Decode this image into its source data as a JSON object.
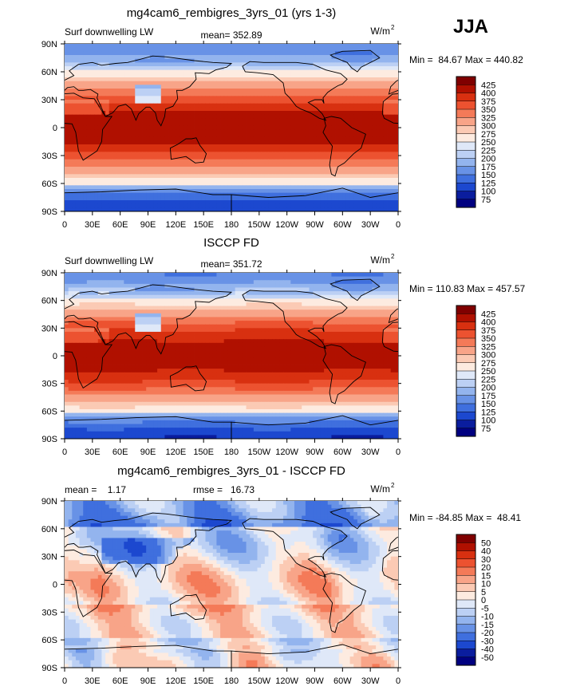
{
  "season_label": "JJA",
  "lon_ticks": [
    "0",
    "30E",
    "60E",
    "90E",
    "120E",
    "150E",
    "180",
    "150W",
    "120W",
    "90W",
    "60W",
    "30W",
    "0"
  ],
  "lat_ticks": [
    "90N",
    "60N",
    "30N",
    "0",
    "30S",
    "60S",
    "90S"
  ],
  "chart_data": [
    {
      "type": "heatmap",
      "title": "mg4cam6_rembigres_3yrs_01 (yrs 1-3)",
      "variable_label": "Surf downwelling LW",
      "stat_text": "mean= 352.89",
      "units_text": "W/m",
      "units_exp": "2",
      "minmax_text": "Min =  84.67 Max = 440.82",
      "colorbar_levels": [
        "425",
        "400",
        "375",
        "350",
        "325",
        "300",
        "275",
        "250",
        "225",
        "200",
        "175",
        "150",
        "125",
        "100",
        "75"
      ],
      "colorbar_colors": [
        "#800000",
        "#b01000",
        "#d83010",
        "#ec5230",
        "#f47a58",
        "#f8a488",
        "#fbcab4",
        "#fdebe0",
        "#dfe8f8",
        "#bcd0f4",
        "#93b4ee",
        "#6892e6",
        "#3f6fde",
        "#1c48cf",
        "#0a1d9e",
        "#000080"
      ],
      "field": "downwelling_lw_model",
      "xlim": [
        0,
        360
      ],
      "ylim": [
        -90,
        90
      ]
    },
    {
      "type": "heatmap",
      "title": "ISCCP FD",
      "variable_label": "Surf downwelling LW",
      "stat_text": "mean= 351.72",
      "units_text": "W/m",
      "units_exp": "2",
      "minmax_text": "Min = 110.83 Max = 457.57",
      "colorbar_levels": [
        "425",
        "400",
        "375",
        "350",
        "325",
        "300",
        "275",
        "250",
        "225",
        "200",
        "175",
        "150",
        "125",
        "100",
        "75"
      ],
      "colorbar_colors": [
        "#800000",
        "#b01000",
        "#d83010",
        "#ec5230",
        "#f47a58",
        "#f8a488",
        "#fbcab4",
        "#fdebe0",
        "#dfe8f8",
        "#bcd0f4",
        "#93b4ee",
        "#6892e6",
        "#3f6fde",
        "#1c48cf",
        "#0a1d9e",
        "#000080"
      ],
      "field": "downwelling_lw_obs",
      "xlim": [
        0,
        360
      ],
      "ylim": [
        -90,
        90
      ]
    },
    {
      "type": "heatmap",
      "title": "mg4cam6_rembigres_3yrs_01 - ISCCP FD",
      "stat_text": "mean =    1.17",
      "stat2_text": "rmse =   16.73",
      "units_text": "W/m",
      "units_exp": "2",
      "minmax_text": "Min = -84.85 Max =  48.41",
      "colorbar_levels": [
        "50",
        "40",
        "30",
        "20",
        "15",
        "10",
        "5",
        "0",
        "-5",
        "-10",
        "-15",
        "-20",
        "-30",
        "-40",
        "-50"
      ],
      "colorbar_colors": [
        "#800000",
        "#b01000",
        "#d83010",
        "#ec5230",
        "#f47a58",
        "#f8a488",
        "#fbcab4",
        "#fdebe0",
        "#dfe8f8",
        "#bcd0f4",
        "#93b4ee",
        "#6892e6",
        "#3f6fde",
        "#1c48cf",
        "#0a1d9e",
        "#000080"
      ],
      "field": "difference",
      "xlim": [
        0,
        360
      ],
      "ylim": [
        -90,
        90
      ]
    }
  ]
}
